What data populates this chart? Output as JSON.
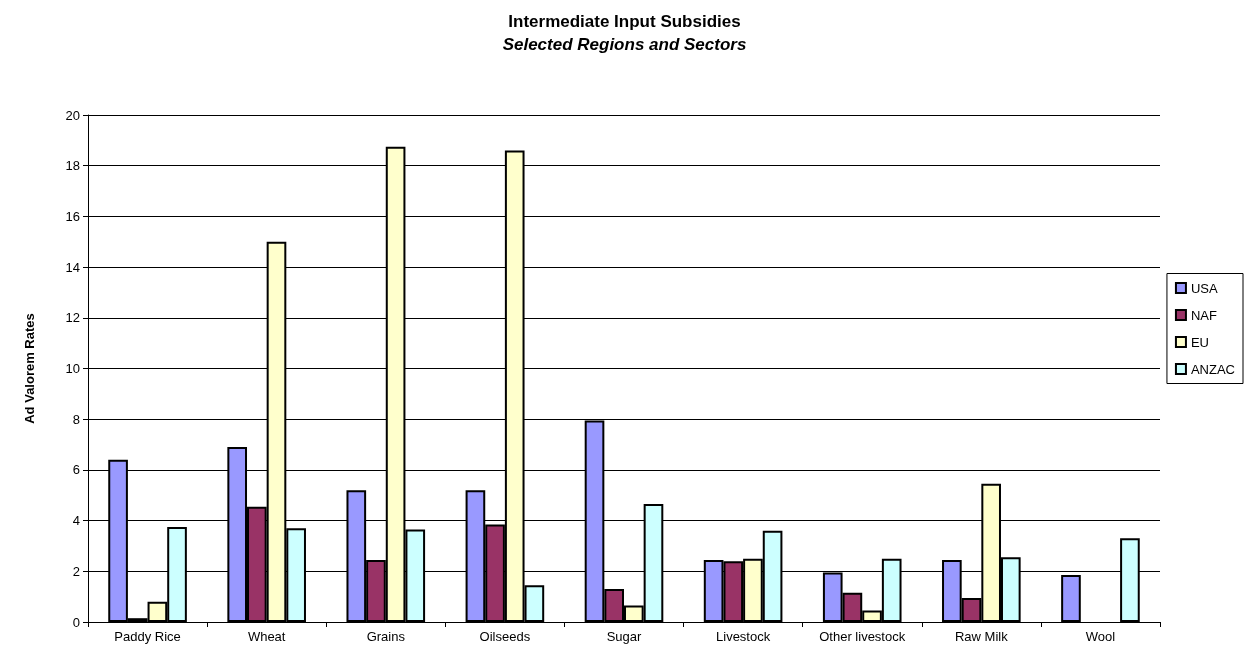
{
  "chart_data": {
    "type": "bar",
    "title": "Intermediate Input Subsidies",
    "subtitle": "Selected Regions and Sectors",
    "ylabel": "Ad Valorem Rates",
    "categories": [
      "Paddy Rice",
      "Wheat",
      "Grains",
      "Oilseeds",
      "Sugar",
      "Livestock",
      "Other livestock",
      "Raw Milk",
      "Wool"
    ],
    "series": [
      {
        "name": "USA",
        "color": "#9999ff",
        "values": [
          6.4,
          6.9,
          5.2,
          5.2,
          7.95,
          2.45,
          1.95,
          2.45,
          1.85
        ]
      },
      {
        "name": "NAF",
        "color": "#993366",
        "values": [
          0.15,
          4.55,
          2.45,
          3.85,
          1.3,
          2.4,
          1.15,
          0.95,
          null
        ]
      },
      {
        "name": "EU",
        "color": "#ffffcc",
        "values": [
          0.8,
          15.0,
          18.75,
          18.6,
          0.65,
          2.5,
          0.45,
          5.45,
          null
        ]
      },
      {
        "name": "ANZAC",
        "color": "#ccffff",
        "values": [
          3.75,
          3.7,
          3.65,
          1.45,
          4.65,
          3.6,
          2.5,
          2.55,
          3.3
        ]
      }
    ],
    "ylim": [
      0,
      20
    ],
    "yticks": [
      0,
      2,
      4,
      6,
      8,
      10,
      12,
      14,
      16,
      18,
      20
    ],
    "grid": "y",
    "legend": "right"
  }
}
